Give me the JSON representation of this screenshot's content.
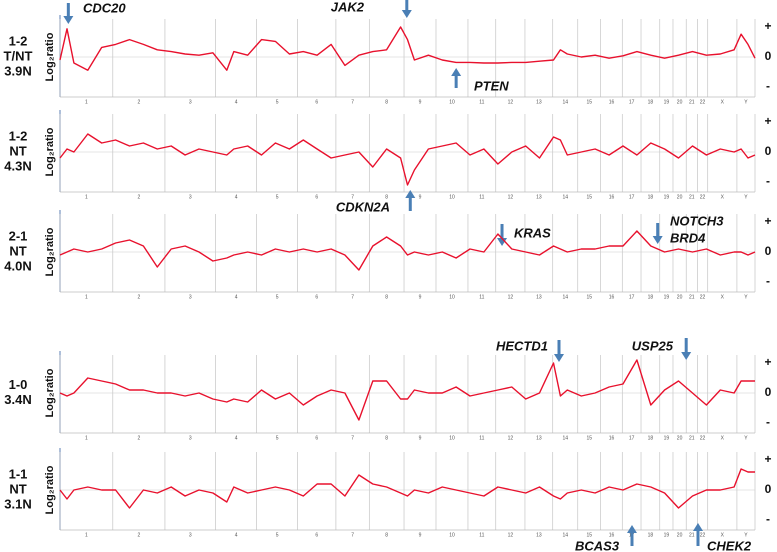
{
  "chromosomes": {
    "categories": [
      "1",
      "2",
      "3",
      "4",
      "5",
      "6",
      "7",
      "8",
      "9",
      "10",
      "11",
      "12",
      "13",
      "14",
      "15",
      "16",
      "17",
      "18",
      "19",
      "20",
      "21",
      "22",
      "X",
      "Y"
    ],
    "bounds": [
      0,
      7.6,
      15.1,
      22.4,
      28.3,
      34.2,
      39.7,
      44.5,
      49.5,
      54.1,
      58.7,
      62.7,
      66.9,
      70.9,
      74.5,
      77.8,
      80.9,
      83.6,
      86.3,
      88.2,
      90.1,
      91.7,
      93.2,
      97.4,
      100
    ]
  },
  "chart_data": [
    {
      "type": "line",
      "label": [
        "1-2",
        "T/NT",
        "3.9N"
      ],
      "y_label": "Log₂ratio",
      "x": [
        0,
        1,
        2,
        4,
        6,
        8,
        10,
        12,
        14,
        16,
        18,
        20,
        22,
        24,
        25,
        27,
        29,
        31,
        33,
        35,
        37,
        39,
        41,
        43,
        45,
        47,
        49,
        50,
        51,
        53,
        55,
        57,
        59,
        61,
        63,
        65,
        67,
        69,
        71,
        72,
        73,
        75,
        77,
        79,
        81,
        83,
        85,
        87,
        89,
        91,
        93,
        95,
        97,
        98,
        99,
        100
      ],
      "series": [
        {
          "color": "#e8112d",
          "values": [
            -0.05,
            0.47,
            -0.1,
            -0.22,
            0.16,
            0.21,
            0.29,
            0.21,
            0.12,
            0.09,
            0.05,
            0.03,
            0.07,
            -0.22,
            0.09,
            0.03,
            0.29,
            0.26,
            0.05,
            0.09,
            0.03,
            0.21,
            -0.14,
            0.03,
            0.09,
            0.12,
            0.5,
            0.29,
            -0.05,
            0.03,
            -0.05,
            -0.09,
            -0.09,
            -0.1,
            -0.1,
            -0.09,
            -0.09,
            -0.07,
            -0.05,
            0.12,
            0.05,
            0,
            0.03,
            -0.02,
            0.02,
            0.09,
            0.03,
            -0.02,
            0.03,
            0.09,
            0.03,
            0.05,
            0.12,
            0.38,
            0.21,
            -0.02
          ]
        }
      ],
      "xlim": [
        0,
        100
      ],
      "ylim": [
        -0.75,
        0.75
      ],
      "yticks": [
        {
          "value": 0.5,
          "label": "+"
        },
        0,
        {
          "value": -0.5,
          "label": "-"
        }
      ],
      "annotations": [
        {
          "text": "CDC20",
          "x": 1.2,
          "side": "top"
        },
        {
          "text": "JAK2",
          "x": 49.9,
          "side": "top"
        },
        {
          "text": "PTEN",
          "x": 57,
          "side": "bottom"
        }
      ]
    },
    {
      "type": "line",
      "label": [
        "1-2",
        "NT",
        "4.3N"
      ],
      "y_label": "Log₂ratio",
      "x": [
        0,
        1,
        2,
        4,
        6,
        8,
        10,
        12,
        14,
        16,
        18,
        20,
        22,
        24,
        25,
        27,
        29,
        31,
        33,
        35,
        37,
        39,
        41,
        43,
        45,
        47,
        49,
        50,
        51,
        53,
        55,
        57,
        59,
        61,
        63,
        65,
        67,
        69,
        71,
        72,
        73,
        75,
        77,
        79,
        81,
        83,
        85,
        87,
        89,
        91,
        93,
        95,
        97,
        98,
        99,
        100
      ],
      "series": [
        {
          "color": "#e8112d",
          "values": [
            -0.1,
            0.05,
            0,
            0.3,
            0.15,
            0.2,
            0.1,
            0.15,
            0.05,
            0.1,
            -0.05,
            0.05,
            0,
            -0.05,
            0.05,
            0.1,
            -0.05,
            0.15,
            0.05,
            0.2,
            0.05,
            -0.1,
            -0.05,
            0,
            -0.25,
            0.05,
            -0.1,
            -0.55,
            -0.3,
            0.05,
            0.1,
            0.15,
            -0.05,
            0.05,
            -0.2,
            0,
            0.1,
            -0.1,
            0.25,
            0.2,
            -0.05,
            0,
            0.05,
            -0.05,
            0.1,
            -0.05,
            0.15,
            0.05,
            -0.1,
            0.1,
            -0.05,
            0.05,
            0,
            0.05,
            -0.1,
            -0.05
          ]
        }
      ],
      "xlim": [
        0,
        100
      ],
      "ylim": [
        -0.75,
        0.75
      ],
      "yticks": [
        {
          "value": 0.5,
          "label": "+"
        },
        0,
        {
          "value": -0.5,
          "label": "-"
        }
      ],
      "annotations": [
        {
          "text": "CDKN2A",
          "x": 50.4,
          "side": "bottom"
        }
      ]
    },
    {
      "type": "line",
      "label": [
        "2-1",
        "NT",
        "4.0N"
      ],
      "y_label": "Log₂ratio",
      "x": [
        0,
        1,
        2,
        4,
        6,
        8,
        10,
        12,
        14,
        16,
        18,
        20,
        22,
        24,
        25,
        27,
        29,
        31,
        33,
        35,
        37,
        39,
        41,
        43,
        45,
        47,
        49,
        50,
        51,
        53,
        55,
        57,
        59,
        61,
        63,
        65,
        67,
        69,
        71,
        72,
        73,
        75,
        77,
        79,
        81,
        83,
        85,
        87,
        89,
        91,
        93,
        95,
        97,
        98,
        99,
        100
      ],
      "series": [
        {
          "color": "#e8112d",
          "values": [
            -0.05,
            0,
            0.05,
            0,
            0.05,
            0.15,
            0.2,
            0.1,
            -0.25,
            0.05,
            0.1,
            0,
            -0.15,
            -0.1,
            -0.05,
            0,
            -0.05,
            0.05,
            0,
            0.05,
            0,
            0.05,
            -0.05,
            -0.3,
            0.1,
            0.25,
            0.1,
            -0.05,
            0,
            -0.05,
            0,
            -0.1,
            0.05,
            0,
            0.3,
            0.05,
            0,
            -0.05,
            0.1,
            0.05,
            0,
            0.05,
            0.05,
            0.1,
            0.1,
            0.35,
            0.1,
            0,
            0.05,
            0,
            0.05,
            -0.05,
            0,
            0,
            -0.05,
            0
          ]
        }
      ],
      "xlim": [
        0,
        100
      ],
      "ylim": [
        -0.75,
        0.75
      ],
      "yticks": [
        {
          "value": 0.5,
          "label": "+"
        },
        0,
        {
          "value": -0.5,
          "label": "-"
        }
      ],
      "annotations": [
        {
          "text": "KRAS",
          "x": 63.6,
          "side": "top"
        },
        {
          "text": [
            "NOTCH3",
            "BRD4"
          ],
          "x": 86,
          "side": "top"
        }
      ]
    },
    {
      "type": "line",
      "label": [
        "1-0",
        "3.4N"
      ],
      "y_label": "Log₂ratio",
      "x": [
        0,
        1,
        2,
        4,
        6,
        8,
        10,
        12,
        14,
        16,
        18,
        20,
        22,
        24,
        25,
        27,
        29,
        31,
        33,
        35,
        37,
        39,
        41,
        43,
        45,
        47,
        49,
        50,
        51,
        53,
        55,
        57,
        59,
        61,
        63,
        65,
        67,
        69,
        71,
        72,
        73,
        75,
        77,
        79,
        81,
        83,
        85,
        87,
        89,
        91,
        93,
        95,
        97,
        98,
        99,
        100
      ],
      "series": [
        {
          "color": "#e8112d",
          "values": [
            0,
            -0.05,
            0,
            0.25,
            0.2,
            0.15,
            0.05,
            0.05,
            0,
            0,
            -0.05,
            0,
            -0.1,
            -0.15,
            -0.1,
            -0.15,
            0.05,
            -0.1,
            0,
            -0.2,
            -0.05,
            0.05,
            0,
            -0.45,
            0.2,
            0.2,
            -0.1,
            -0.1,
            0.05,
            0,
            0,
            0.1,
            -0.05,
            0,
            0.05,
            0.1,
            -0.1,
            0,
            0.5,
            -0.05,
            0.05,
            -0.05,
            0,
            0.1,
            0.15,
            0.55,
            -0.2,
            0.05,
            0.2,
            0,
            -0.2,
            0.05,
            0,
            0.2,
            0.2,
            0.2
          ]
        }
      ],
      "xlim": [
        0,
        100
      ],
      "ylim": [
        -0.75,
        0.75
      ],
      "yticks": [
        {
          "value": 0.5,
          "label": "+"
        },
        0,
        {
          "value": -0.5,
          "label": "-"
        }
      ],
      "annotations": [
        {
          "text": "HECTD1",
          "x": 71.8,
          "side": "top"
        },
        {
          "text": "USP25",
          "x": 90.1,
          "side": "top"
        }
      ]
    },
    {
      "type": "line",
      "label": [
        "1-1",
        "NT",
        "3.1N"
      ],
      "y_label": "Log₂ratio",
      "x": [
        0,
        1,
        2,
        4,
        6,
        8,
        10,
        12,
        14,
        16,
        18,
        20,
        22,
        24,
        25,
        27,
        29,
        31,
        33,
        35,
        37,
        39,
        41,
        43,
        45,
        47,
        49,
        50,
        51,
        53,
        55,
        57,
        59,
        61,
        63,
        65,
        67,
        69,
        71,
        72,
        73,
        75,
        77,
        79,
        81,
        83,
        85,
        87,
        89,
        91,
        93,
        95,
        97,
        98,
        99,
        100
      ],
      "series": [
        {
          "color": "#e8112d",
          "values": [
            0,
            -0.15,
            0,
            0.05,
            0,
            0,
            -0.3,
            0,
            -0.05,
            0.05,
            -0.1,
            0,
            -0.05,
            -0.2,
            0.05,
            -0.05,
            0,
            0.05,
            0,
            -0.1,
            0.1,
            0.1,
            -0.1,
            0.25,
            0.1,
            0.05,
            -0.05,
            -0.1,
            0,
            -0.05,
            0.05,
            0,
            -0.05,
            -0.1,
            0.05,
            0,
            -0.05,
            0.05,
            -0.1,
            -0.15,
            -0.05,
            0,
            -0.05,
            0.05,
            0,
            0.1,
            0.05,
            -0.05,
            -0.3,
            -0.1,
            0,
            0,
            0.05,
            0.35,
            0.3,
            0.3
          ]
        }
      ],
      "xlim": [
        0,
        100
      ],
      "ylim": [
        -0.75,
        0.75
      ],
      "yticks": [
        {
          "value": 0.5,
          "label": "+"
        },
        0,
        {
          "value": -0.5,
          "label": "-"
        }
      ],
      "annotations": [
        {
          "text": "BCAS3",
          "x": 82.3,
          "side": "bottom"
        },
        {
          "text": "CHEK2",
          "x": 91.8,
          "side": "bottom"
        }
      ]
    }
  ]
}
